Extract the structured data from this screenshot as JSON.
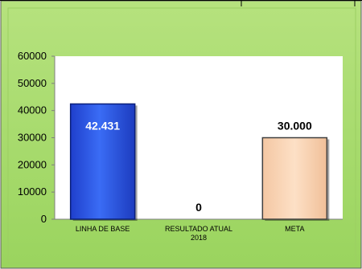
{
  "colors": {
    "panel_outer": "#92d050",
    "panel_inner": "#b4e07a",
    "plot_area": "#ffffff",
    "axis_line": "#7f7f7f",
    "grid_tick": "#7f7f7f",
    "border": "#404040"
  },
  "chart_data": {
    "type": "bar",
    "title": "",
    "xlabel": "",
    "ylabel": "",
    "ylim": [
      0,
      60000
    ],
    "y_ticks": [
      "0",
      "10000",
      "20000",
      "30000",
      "40000",
      "50000",
      "60000"
    ],
    "grid": false,
    "legend": "none",
    "categories": [
      "LINHA DE  BASE",
      "RESULTADO ATUAL 2018",
      "META"
    ],
    "category_labels": [
      [
        "LINHA DE  BASE"
      ],
      [
        "RESULTADO ATUAL",
        "2018"
      ],
      [
        "META"
      ]
    ],
    "values": [
      42431,
      0,
      30000
    ],
    "data_labels": [
      "42.431",
      "0",
      "30.000"
    ],
    "bar_colors": [
      "#2e5bea",
      "#f2f2f2",
      "#fcd5b5"
    ],
    "bar_edge_colors": [
      "#0a1f7a",
      "#7f7f7f",
      "#404040"
    ]
  }
}
